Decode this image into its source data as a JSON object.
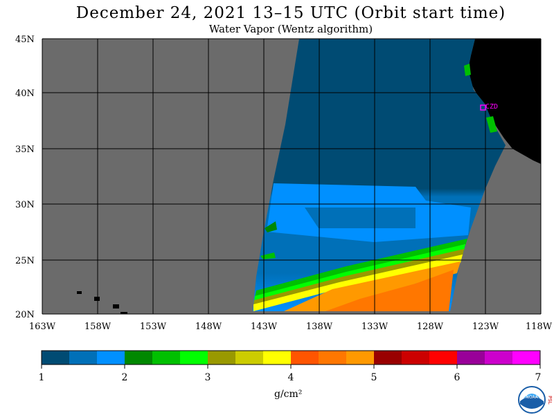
{
  "map": {
    "title": "December 24, 2021  13–15 UTC  (Orbit start time)",
    "subtitle": "Water Vapor (Wentz algorithm)",
    "lat_labels": [
      "45N",
      "40N",
      "35N",
      "30N",
      "25N",
      "20N"
    ],
    "lon_labels": [
      "163W",
      "158W",
      "153W",
      "148W",
      "143W",
      "138W",
      "133W",
      "128W",
      "123W",
      "118W"
    ],
    "station_label": "CZD",
    "extent": {
      "lon_min": -163,
      "lon_max": -118,
      "lat_min": 20,
      "lat_max": 45
    },
    "colors": {
      "no_data": "#6b6b6b",
      "land": "#000000",
      "grid": "#000000",
      "station": "#ff00ff"
    }
  },
  "colorbar": {
    "tick_labels": [
      "1",
      "2",
      "3",
      "4",
      "5",
      "6",
      "7"
    ],
    "units": "g/cm²",
    "min": 1,
    "max": 7,
    "colors": [
      "#004b73",
      "#0070b8",
      "#0090ff",
      "#008800",
      "#00c000",
      "#00ff00",
      "#999900",
      "#cccc00",
      "#ffff00",
      "#ff5500",
      "#ff7700",
      "#ff9900",
      "#990000",
      "#cc0000",
      "#ff0000",
      "#990099",
      "#cc00cc",
      "#ff00ff"
    ]
  },
  "logo": {
    "name": "NOAA",
    "side_text": "PSL",
    "icon": "noaa-logo-icon"
  }
}
